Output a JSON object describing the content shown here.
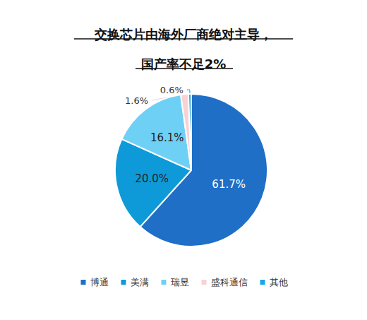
{
  "chart_data": {
    "type": "pie",
    "title": "交换芯片由海外厂商绝对主导，\n国产率不足2%",
    "categories": [
      "博通",
      "美满",
      "瑞昱",
      "盛科通信",
      "其他"
    ],
    "values": [
      61.7,
      20.0,
      16.1,
      1.6,
      0.6
    ],
    "value_labels": [
      "61.7%",
      "20.0%",
      "16.1%",
      "1.6%",
      "0.6%"
    ],
    "colors": [
      "#1f6fc6",
      "#0e9ad8",
      "#6fd0f6",
      "#f8d2d5",
      "#1aa6e2"
    ],
    "data_labels": true,
    "legend": "bottom"
  }
}
